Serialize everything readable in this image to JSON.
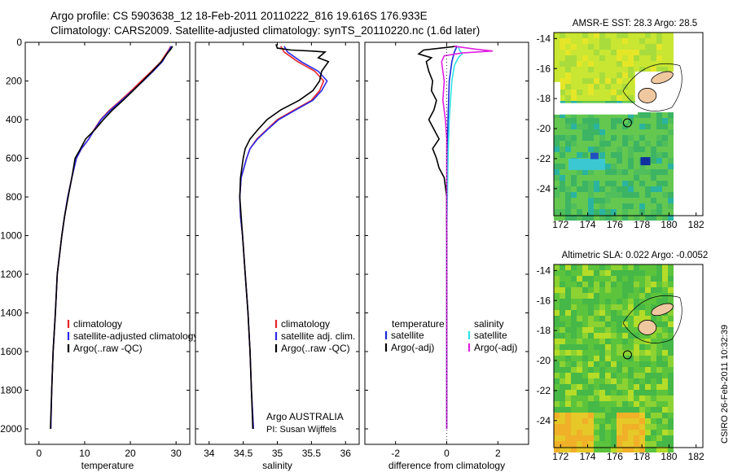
{
  "header": {
    "line1": "Argo profile: CS 5903638_12 18-Feb-2011 20110222_816 19.616S 176.933E",
    "line2": "Climatology: CARS2009. Satellite-adjusted climatology: synTS_20110220.nc (1.6d later)"
  },
  "colors": {
    "climatology": "#e8222a",
    "satellite": "#2a2ae8",
    "argo": "#000000",
    "temp_diff_satellite": "#1a2ad6",
    "sal_diff_satellite": "#30e0e8",
    "sal_diff_argo": "#e020e0"
  },
  "chart_data": [
    {
      "id": "temperature",
      "type": "line",
      "xlabel": "temperature",
      "ylabel": "",
      "xlim": [
        -3,
        33
      ],
      "ylim": [
        2080,
        0
      ],
      "xticks": [
        0,
        10,
        20,
        30
      ],
      "yticks": [
        0,
        200,
        400,
        600,
        800,
        1000,
        1200,
        1400,
        1600,
        1800,
        2000
      ],
      "series": [
        {
          "name": "climatology",
          "color_key": "climatology",
          "points": [
            [
              28.8,
              20
            ],
            [
              28.5,
              35
            ],
            [
              27.8,
              60
            ],
            [
              26.7,
              100
            ],
            [
              24.6,
              150
            ],
            [
              22.4,
              200
            ],
            [
              20.2,
              250
            ],
            [
              17.9,
              300
            ],
            [
              15.5,
              350
            ],
            [
              13.5,
              400
            ],
            [
              12.1,
              450
            ],
            [
              10.9,
              500
            ],
            [
              9.3,
              550
            ],
            [
              8.2,
              600
            ],
            [
              7.2,
              700
            ],
            [
              6.3,
              800
            ],
            [
              5.6,
              900
            ],
            [
              5.0,
              1000
            ],
            [
              4.5,
              1100
            ],
            [
              4.0,
              1200
            ],
            [
              3.6,
              1400
            ],
            [
              3.1,
              1600
            ],
            [
              2.8,
              1800
            ],
            [
              2.6,
              2000
            ]
          ]
        },
        {
          "name": "satellite-adjusted climatology",
          "color_key": "satellite",
          "points": [
            [
              29.0,
              20
            ],
            [
              28.6,
              35
            ],
            [
              28.0,
              60
            ],
            [
              27.0,
              100
            ],
            [
              25.0,
              150
            ],
            [
              22.8,
              200
            ],
            [
              20.5,
              250
            ],
            [
              18.1,
              300
            ],
            [
              15.7,
              350
            ],
            [
              13.6,
              400
            ],
            [
              12.2,
              450
            ],
            [
              10.9,
              500
            ],
            [
              9.3,
              550
            ],
            [
              8.2,
              600
            ],
            [
              7.2,
              700
            ],
            [
              6.3,
              800
            ],
            [
              5.6,
              900
            ],
            [
              5.0,
              1000
            ],
            [
              4.5,
              1100
            ],
            [
              4.0,
              1200
            ],
            [
              3.6,
              1400
            ],
            [
              3.1,
              1600
            ],
            [
              2.8,
              1800
            ],
            [
              2.6,
              2000
            ]
          ]
        },
        {
          "name": "Argo(..raw -QC)",
          "color_key": "argo",
          "points": [
            [
              29.2,
              20
            ],
            [
              29.0,
              30
            ],
            [
              28.7,
              40
            ],
            [
              28.0,
              60
            ],
            [
              26.8,
              100
            ],
            [
              24.8,
              150
            ],
            [
              22.7,
              200
            ],
            [
              20.6,
              250
            ],
            [
              18.4,
              300
            ],
            [
              16.1,
              350
            ],
            [
              14.1,
              400
            ],
            [
              12.3,
              450
            ],
            [
              10.2,
              500
            ],
            [
              9.1,
              550
            ],
            [
              7.9,
              600
            ],
            [
              7.2,
              700
            ],
            [
              6.4,
              800
            ],
            [
              5.6,
              900
            ],
            [
              5.0,
              1000
            ],
            [
              4.5,
              1100
            ],
            [
              4.0,
              1200
            ],
            [
              3.6,
              1400
            ],
            [
              3.1,
              1600
            ],
            [
              2.8,
              1800
            ],
            [
              2.5,
              2000
            ]
          ]
        }
      ],
      "legend": [
        "climatology",
        "satellite-adjusted climatology",
        "Argo(..raw -QC)"
      ]
    },
    {
      "id": "salinity",
      "type": "line",
      "xlabel": "salinity",
      "ylabel": "",
      "xlim": [
        33.8,
        36.2
      ],
      "ylim": [
        2080,
        0
      ],
      "xticks": [
        34,
        34.5,
        35,
        35.5,
        36
      ],
      "series": [
        {
          "name": "climatology",
          "color_key": "climatology",
          "points": [
            [
              35.05,
              20
            ],
            [
              35.1,
              50
            ],
            [
              35.3,
              100
            ],
            [
              35.55,
              150
            ],
            [
              35.68,
              200
            ],
            [
              35.62,
              250
            ],
            [
              35.5,
              300
            ],
            [
              35.25,
              350
            ],
            [
              35.0,
              400
            ],
            [
              34.85,
              450
            ],
            [
              34.7,
              500
            ],
            [
              34.6,
              550
            ],
            [
              34.55,
              600
            ],
            [
              34.47,
              700
            ],
            [
              34.45,
              800
            ],
            [
              34.46,
              900
            ],
            [
              34.49,
              1000
            ],
            [
              34.53,
              1200
            ],
            [
              34.57,
              1400
            ],
            [
              34.6,
              1600
            ],
            [
              34.62,
              1800
            ],
            [
              34.65,
              2000
            ]
          ]
        },
        {
          "name": "satellite adj. clim.",
          "color_key": "satellite",
          "points": [
            [
              35.1,
              20
            ],
            [
              35.15,
              50
            ],
            [
              35.35,
              100
            ],
            [
              35.6,
              150
            ],
            [
              35.73,
              200
            ],
            [
              35.65,
              250
            ],
            [
              35.52,
              300
            ],
            [
              35.27,
              350
            ],
            [
              35.02,
              400
            ],
            [
              34.86,
              450
            ],
            [
              34.71,
              500
            ],
            [
              34.6,
              550
            ],
            [
              34.55,
              600
            ],
            [
              34.47,
              700
            ],
            [
              34.45,
              800
            ],
            [
              34.46,
              900
            ],
            [
              34.49,
              1000
            ],
            [
              34.53,
              1200
            ],
            [
              34.57,
              1400
            ],
            [
              34.6,
              1600
            ],
            [
              34.62,
              1800
            ],
            [
              34.65,
              2000
            ]
          ]
        },
        {
          "name": "Argo(..raw -QC)",
          "color_key": "argo",
          "points": [
            [
              34.98,
              10
            ],
            [
              35.0,
              30
            ],
            [
              35.2,
              40
            ],
            [
              35.5,
              45
            ],
            [
              35.7,
              50
            ],
            [
              35.6,
              80
            ],
            [
              35.75,
              100
            ],
            [
              35.65,
              150
            ],
            [
              35.62,
              200
            ],
            [
              35.52,
              250
            ],
            [
              35.32,
              300
            ],
            [
              35.05,
              350
            ],
            [
              34.85,
              400
            ],
            [
              34.72,
              450
            ],
            [
              34.6,
              500
            ],
            [
              34.53,
              550
            ],
            [
              34.5,
              600
            ],
            [
              34.46,
              700
            ],
            [
              34.45,
              800
            ],
            [
              34.47,
              900
            ],
            [
              34.49,
              1000
            ],
            [
              34.53,
              1200
            ],
            [
              34.57,
              1400
            ],
            [
              34.6,
              1600
            ],
            [
              34.62,
              1800
            ],
            [
              34.64,
              2000
            ]
          ]
        }
      ],
      "legend": [
        "climatology",
        "satellite adj. clim.",
        "Argo(..raw -QC)"
      ],
      "annotation": [
        "Argo AUSTRALIA",
        "PI: Susan Wijffels"
      ]
    },
    {
      "id": "difference",
      "type": "line",
      "xlabel": "difference from climatology",
      "xlim": [
        -3.2,
        3.2
      ],
      "ylim": [
        2080,
        0
      ],
      "xticks": [
        -2,
        0,
        2
      ],
      "series": [
        {
          "name": "temperature satellite",
          "color_key": "temp_diff_satellite",
          "points": [
            [
              0.4,
              20
            ],
            [
              0.3,
              50
            ],
            [
              0.2,
              100
            ],
            [
              0.1,
              200
            ],
            [
              0.05,
              400
            ],
            [
              0.02,
              600
            ],
            [
              0.0,
              800
            ],
            [
              0.0,
              1200
            ],
            [
              0.0,
              1600
            ],
            [
              0.0,
              2000
            ]
          ]
        },
        {
          "name": "temperature Argo(-adj)",
          "color_key": "argo",
          "points": [
            [
              0.4,
              20
            ],
            [
              -0.9,
              40
            ],
            [
              -1.1,
              60
            ],
            [
              -0.6,
              80
            ],
            [
              -0.8,
              100
            ],
            [
              -0.7,
              150
            ],
            [
              -0.55,
              200
            ],
            [
              -0.6,
              250
            ],
            [
              -0.4,
              300
            ],
            [
              -0.5,
              350
            ],
            [
              -0.7,
              400
            ],
            [
              -0.5,
              450
            ],
            [
              -0.3,
              500
            ],
            [
              -0.55,
              550
            ],
            [
              -0.4,
              600
            ],
            [
              -0.3,
              650
            ],
            [
              -0.1,
              700
            ],
            [
              0.0,
              800
            ],
            [
              0.0,
              1000
            ],
            [
              0.0,
              1200
            ],
            [
              0.0,
              1600
            ],
            [
              0.0,
              2000
            ]
          ]
        },
        {
          "name": "salinity satellite",
          "color_key": "sal_diff_satellite",
          "points": [
            [
              0.45,
              20
            ],
            [
              0.5,
              40
            ],
            [
              0.6,
              60
            ],
            [
              0.45,
              80
            ],
            [
              0.3,
              120
            ],
            [
              0.2,
              200
            ],
            [
              0.1,
              400
            ],
            [
              0.05,
              600
            ],
            [
              0.0,
              1000
            ],
            [
              0.0,
              2000
            ]
          ]
        },
        {
          "name": "salinity Argo(-adj)",
          "color_key": "sal_diff_argo",
          "points": [
            [
              0.3,
              20
            ],
            [
              1.1,
              35
            ],
            [
              1.8,
              45
            ],
            [
              0.6,
              55
            ],
            [
              -0.1,
              70
            ],
            [
              -0.2,
              100
            ],
            [
              -0.15,
              150
            ],
            [
              -0.1,
              200
            ],
            [
              -0.15,
              300
            ],
            [
              -0.05,
              400
            ],
            [
              0.0,
              500
            ],
            [
              0.0,
              700
            ],
            [
              0.0,
              1000
            ],
            [
              0.0,
              1400
            ],
            [
              0.0,
              2000
            ]
          ]
        }
      ],
      "legend_left_title": "temperature",
      "legend_right_title": "salinity",
      "legend_left": [
        "satellite",
        "Argo(-adj)"
      ],
      "legend_right": [
        "satellite",
        "Argo(-adj)"
      ]
    },
    {
      "id": "sst_map",
      "type": "heatmap",
      "title": "AMSR-E SST: 28.3 Argo: 28.5",
      "xlim": [
        171.5,
        182.5
      ],
      "ylim": [
        -25.8,
        -13.6
      ],
      "xticks": [
        172,
        174,
        176,
        178,
        180,
        182
      ],
      "yticks": [
        -14,
        -16,
        -18,
        -20,
        -22,
        -24
      ],
      "argo_position": [
        176.933,
        -19.616
      ]
    },
    {
      "id": "sla_map",
      "type": "heatmap",
      "title": "Altimetric SLA: 0.022 Argo: -0.0052",
      "xlim": [
        171.5,
        182.5
      ],
      "ylim": [
        -25.8,
        -13.6
      ],
      "xticks": [
        172,
        174,
        176,
        178,
        180,
        182
      ],
      "yticks": [
        -14,
        -16,
        -18,
        -20,
        -22,
        -24
      ],
      "argo_position": [
        176.933,
        -19.616
      ]
    }
  ],
  "footer": {
    "timestamp": "CSIRO 26-Feb-2011 10:32:39"
  }
}
